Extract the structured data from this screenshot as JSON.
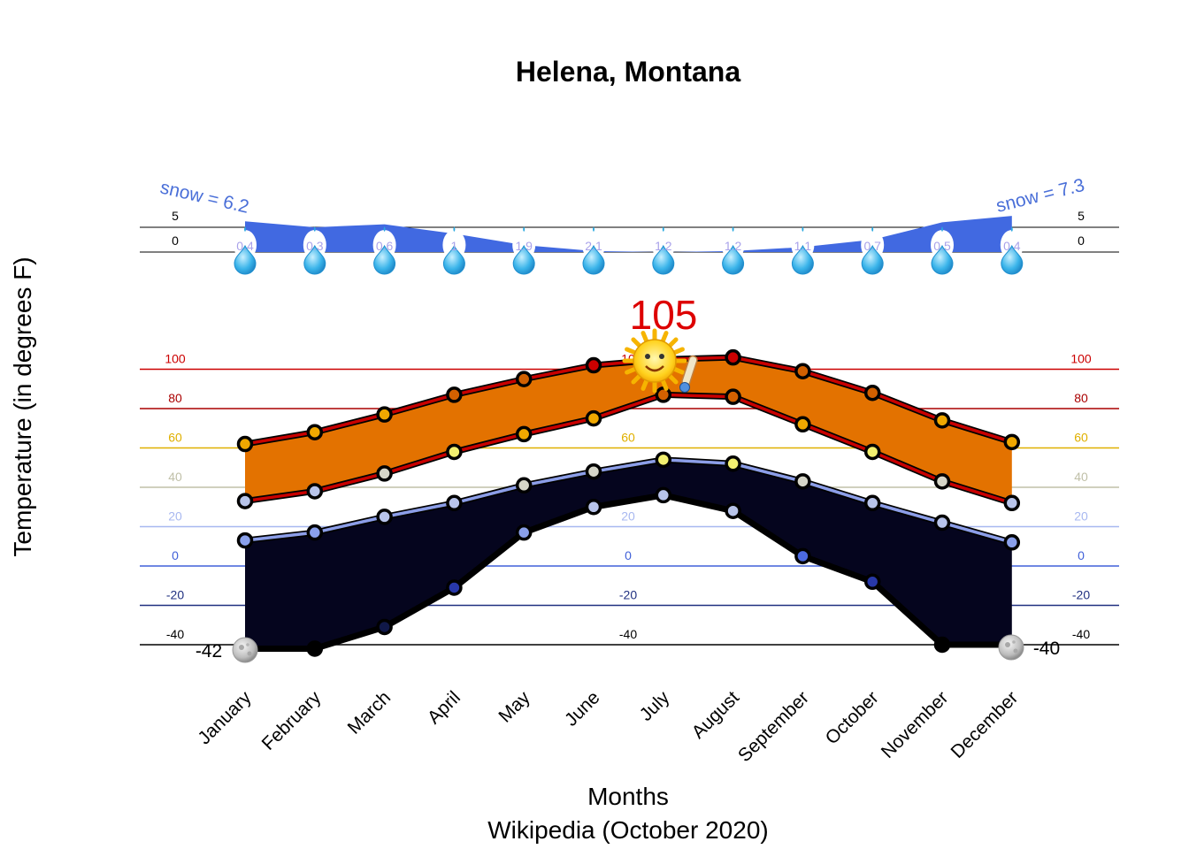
{
  "chart_data": {
    "type": "line",
    "title": "Helena, Montana",
    "xlabel": "Months",
    "caption": "Wikipedia (October 2020)",
    "ylabel": "Temperature (in degrees F)",
    "categories": [
      "January",
      "February",
      "March",
      "April",
      "May",
      "June",
      "July",
      "August",
      "September",
      "October",
      "November",
      "December"
    ],
    "series": [
      {
        "values": [
          62,
          68,
          77,
          87,
          95,
          102,
          105,
          106,
          99,
          88,
          74,
          63
        ]
      },
      {
        "values": [
          33,
          38,
          47,
          58,
          67,
          75,
          87,
          86,
          72,
          58,
          43,
          32
        ]
      },
      {
        "values": [
          13,
          17,
          25,
          32,
          41,
          48,
          54,
          52,
          43,
          32,
          22,
          12
        ]
      },
      {
        "values": [
          -42,
          -42,
          -31,
          -11,
          17,
          30,
          36,
          28,
          5,
          -8,
          -40,
          -40
        ]
      }
    ],
    "precipitation": [
      0.4,
      0.3,
      0.6,
      1,
      1.9,
      2.1,
      1.2,
      1.2,
      1.1,
      0.7,
      0.5,
      0.4
    ],
    "snowfall": [
      6.2,
      5.0,
      5.6,
      3.7,
      1.4,
      0.2,
      0,
      0.2,
      1.0,
      2.5,
      6.0,
      7.3
    ],
    "snow_labels": {
      "left": "snow = 6.2",
      "right": "snow = 7.3"
    },
    "record_high": "105",
    "record_low_left": "-42",
    "record_low_right": "-40",
    "temp_gridlines": [
      {
        "value": 100,
        "label": "100",
        "color": "#cc0000"
      },
      {
        "value": 80,
        "label": "80",
        "color": "#aa0000"
      },
      {
        "value": 60,
        "label": "60",
        "color": "#e0b000"
      },
      {
        "value": 40,
        "label": "40",
        "color": "#c0c0a8"
      },
      {
        "value": 20,
        "label": "20",
        "color": "#a8b8f0"
      },
      {
        "value": 0,
        "label": "0",
        "color": "#4060d8"
      },
      {
        "value": -20,
        "label": "-20",
        "color": "#203080"
      },
      {
        "value": -40,
        "label": "-40",
        "color": "#000000"
      }
    ],
    "mid_labels": [
      "10",
      "60",
      "20",
      "0",
      "-20",
      "-40"
    ],
    "snow_gridlines": [
      {
        "value": 5,
        "label": "5"
      },
      {
        "value": 0,
        "label": "0"
      }
    ],
    "colors": {
      "warm_band": "#e37200",
      "cold_band": "#05051e",
      "high_line": "#c80000",
      "low_line": "#8c9ee8",
      "snow_fill": "#4169e1",
      "drop": "#29a9e0",
      "snow_label": "#4a6fd8"
    },
    "ylim": [
      -42,
      110
    ],
    "grid": true
  }
}
